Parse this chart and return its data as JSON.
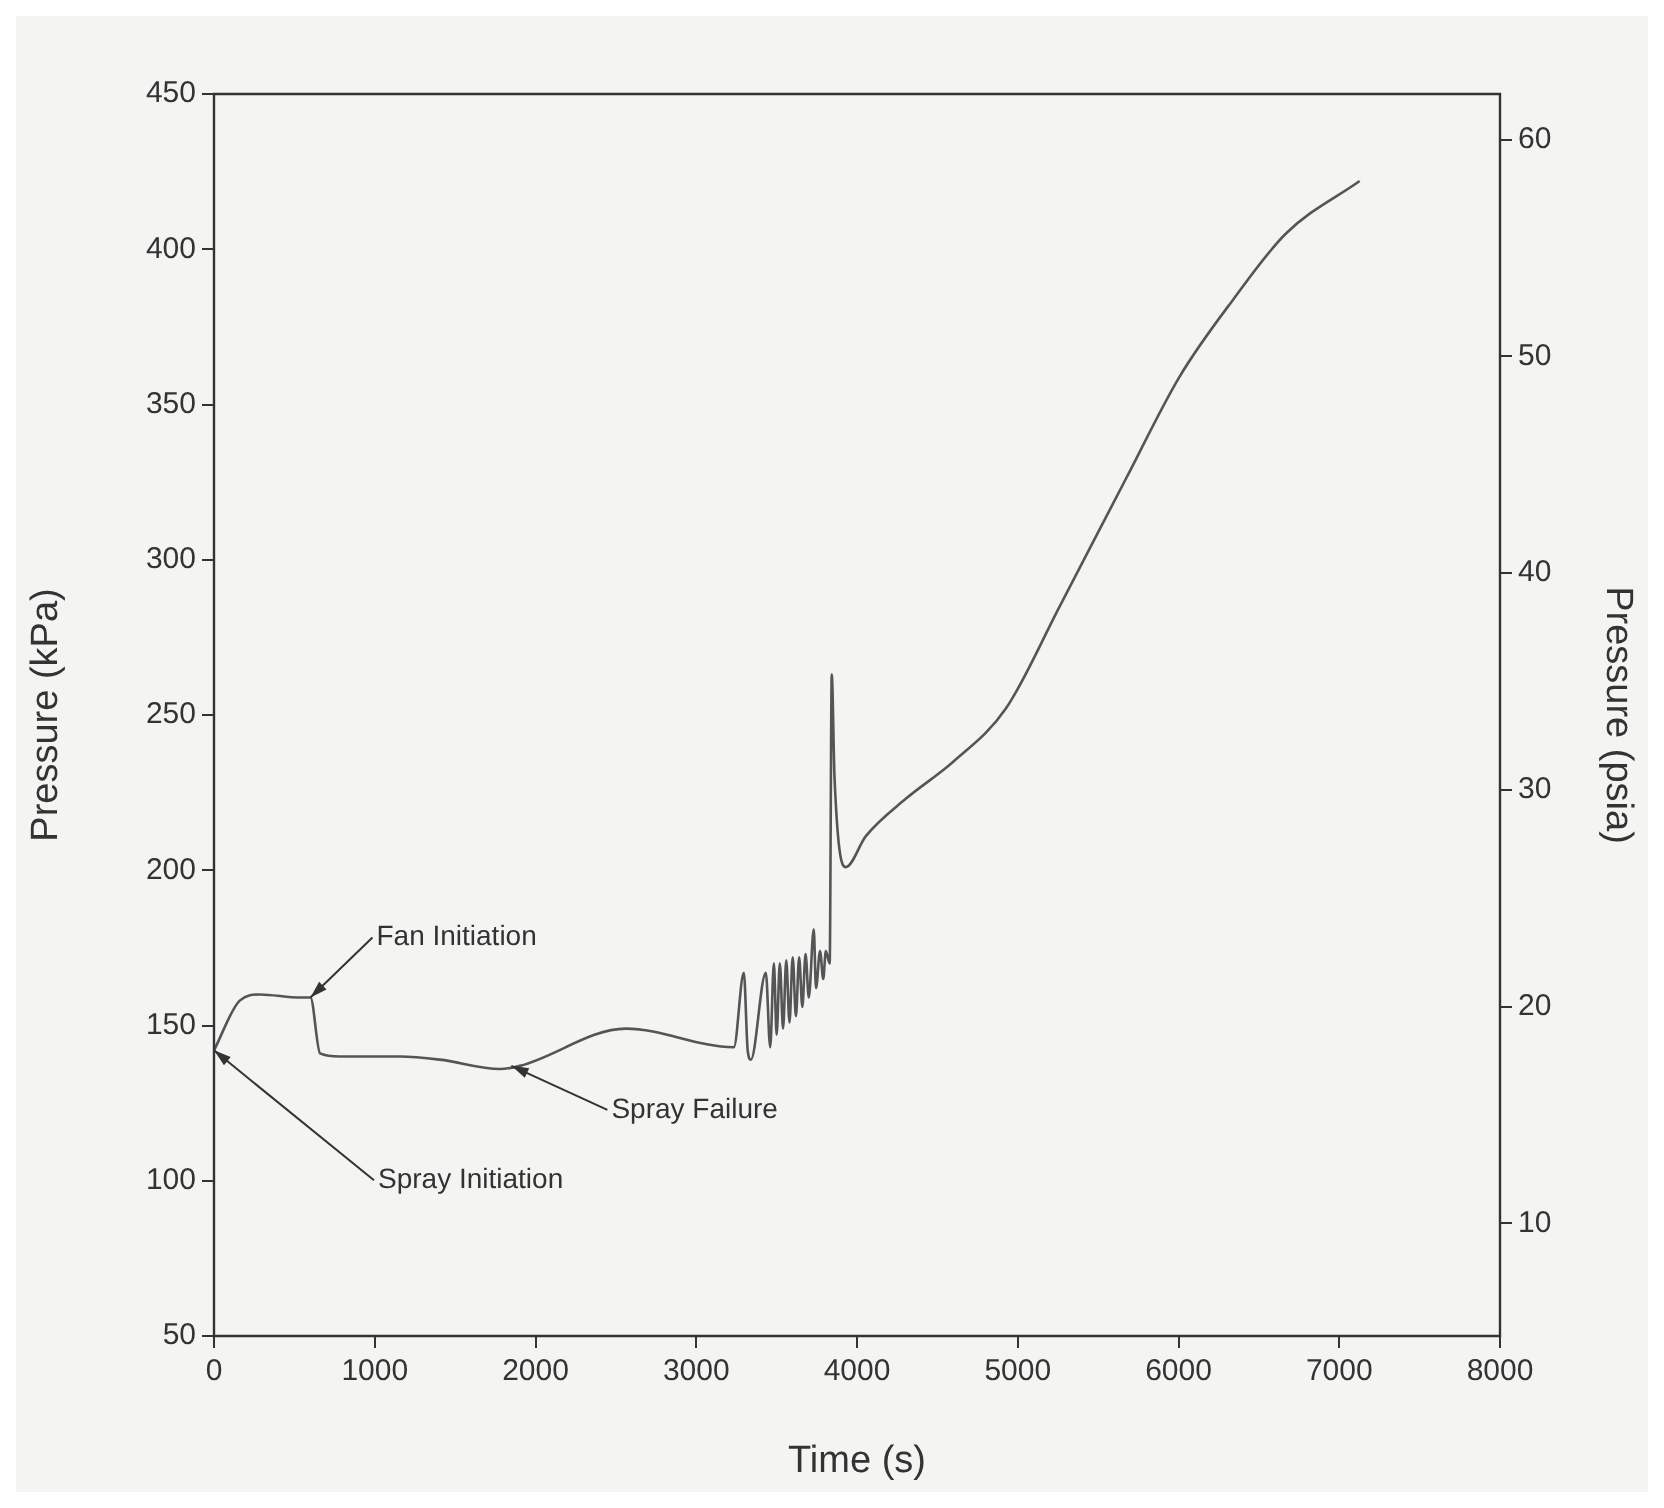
{
  "chart_data": {
    "type": "line",
    "xlabel": "Time (s)",
    "ylabel": "Pressure (kPa)",
    "y2label": "Pressure (psia)",
    "xlim": [
      0,
      8000
    ],
    "xticks": [
      0,
      1000,
      2000,
      3000,
      4000,
      5000,
      6000,
      7000,
      8000
    ],
    "ylim": [
      50,
      450
    ],
    "yticks": [
      50,
      100,
      150,
      200,
      250,
      300,
      350,
      400,
      450
    ],
    "y2lim": [
      4.8,
      62.1
    ],
    "y2ticks": [
      10,
      20,
      30,
      40,
      50,
      60
    ],
    "grid": false,
    "legend": false,
    "marker": "none",
    "line_style": "solid",
    "series": [
      {
        "color": "#555555",
        "x": [
          0,
          160,
          286,
          535,
          600,
          660,
          784,
          1157,
          1405,
          1779,
          1903,
          2562,
          3234,
          3296,
          3320,
          3340,
          3433,
          3460,
          3483,
          3500,
          3520,
          3540,
          3560,
          3580,
          3600,
          3620,
          3640,
          3660,
          3680,
          3700,
          3731,
          3745,
          3770,
          3790,
          3806,
          3830,
          3843,
          3860,
          3930,
          4055,
          4303,
          4600,
          4925,
          5261,
          5672,
          6007,
          6343,
          6667,
          7127
        ],
        "values": [
          142,
          158,
          160,
          159,
          159,
          141,
          140,
          140,
          139,
          136,
          137,
          149,
          143,
          167,
          142,
          139,
          167,
          143,
          170,
          147,
          170,
          149,
          171,
          151,
          172,
          153,
          172,
          156,
          173,
          159,
          181,
          162,
          174,
          165,
          174,
          170,
          263,
          230,
          201,
          211,
          223,
          235,
          252,
          285,
          326,
          359,
          384,
          405,
          422
        ]
      }
    ],
    "annotations": [
      {
        "text": "Fan Initiation",
        "x": 600,
        "y": 159
      },
      {
        "text": "Spray Failure",
        "x": 1850,
        "y": 137
      },
      {
        "text": "Spray Initiation",
        "x": 0,
        "y": 142
      }
    ]
  }
}
